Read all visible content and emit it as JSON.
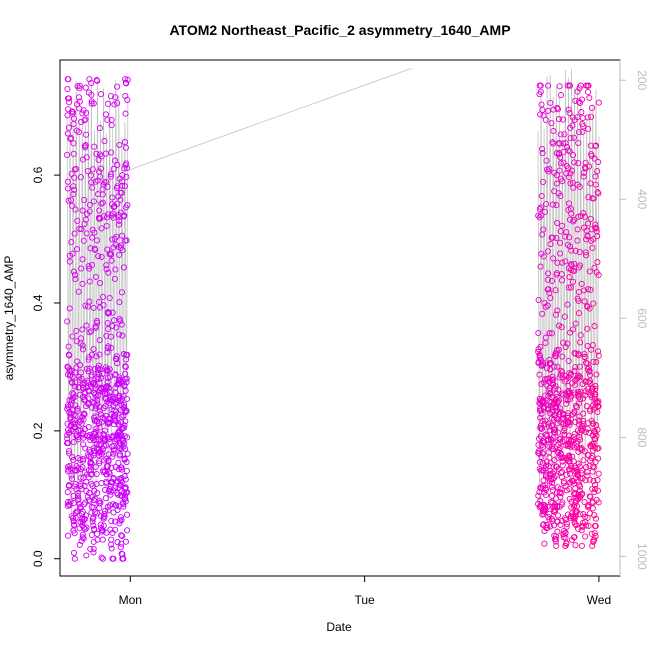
{
  "chart_data": {
    "type": "scatter",
    "title": "ATOM2 Northeast_Pacific_2 asymmetry_1640_AMP",
    "xlabel": "Date",
    "ylabel": "asymmetry_1640_AMP",
    "x_ticks": [
      "Mon",
      "Tue",
      "Wed"
    ],
    "x_range_days": [
      -0.3,
      2.09
    ],
    "y_ticks": [
      "0.0",
      "0.2",
      "0.4",
      "0.6"
    ],
    "y_range": [
      -0.027,
      0.78
    ],
    "y2_ticks": [
      "200",
      "400",
      "600",
      "800",
      "1000"
    ],
    "y2_range": [
      1033,
      166
    ],
    "y2_axis_color": "#bdbdbd",
    "grid": false,
    "legend": "none",
    "marker": "open-circle",
    "line_color": "#c0c0c0",
    "series": [
      {
        "group": "first cluster (before Mon)",
        "color_start": "#e000e0",
        "color_end": "#c800ff",
        "x_days_start": -0.27,
        "x_days_end": -0.01,
        "y_min": 0.0,
        "y_max": 0.75,
        "approx_points": 900
      },
      {
        "group": "second cluster (before Wed)",
        "color_start": "#e000e0",
        "color_end": "#ff0090",
        "x_days_start": 1.74,
        "x_days_end": 2.0,
        "y_min": 0.02,
        "y_max": 0.74,
        "approx_points": 900
      }
    ],
    "depth_trace_y2": [
      {
        "x_days": -0.27,
        "depth": 200
      },
      {
        "x_days": -0.2,
        "depth": 900
      },
      {
        "x_days": -0.12,
        "depth": 250
      },
      {
        "x_days": -0.05,
        "depth": 850
      },
      {
        "x_days": 0.0,
        "depth": 350
      },
      {
        "x_days": 1.2,
        "depth": 180
      },
      {
        "x_days": 1.74,
        "depth": 200
      },
      {
        "x_days": 1.82,
        "depth": 880
      },
      {
        "x_days": 1.9,
        "depth": 220
      },
      {
        "x_days": 1.97,
        "depth": 900
      },
      {
        "x_days": 2.0,
        "depth": 300
      }
    ]
  }
}
